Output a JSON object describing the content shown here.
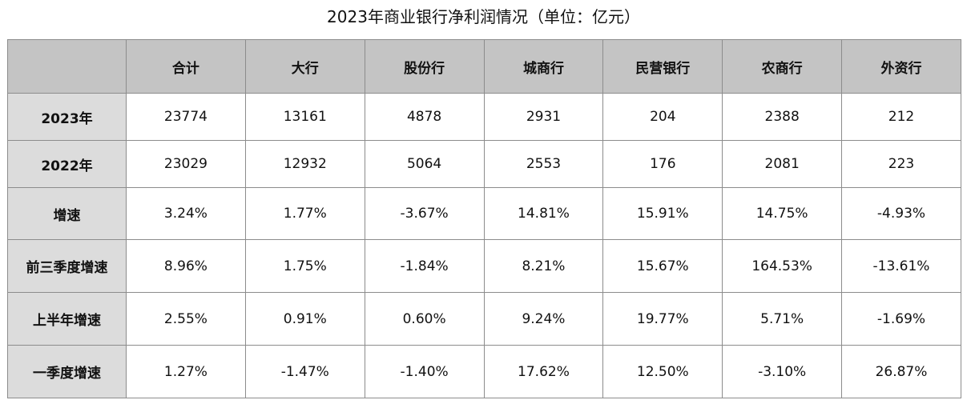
{
  "chart_data": {
    "type": "table",
    "title": "2023年商业银行净利润情况（单位：亿元）",
    "columns": [
      "合计",
      "大行",
      "股份行",
      "城商行",
      "民营银行",
      "农商行",
      "外资行"
    ],
    "rows": [
      {
        "label": "2023年",
        "values": [
          "23774",
          "13161",
          "4878",
          "2931",
          "204",
          "2388",
          "212"
        ]
      },
      {
        "label": "2022年",
        "values": [
          "23029",
          "12932",
          "5064",
          "2553",
          "176",
          "2081",
          "223"
        ]
      },
      {
        "label": "增速",
        "values": [
          "3.24%",
          "1.77%",
          "-3.67%",
          "14.81%",
          "15.91%",
          "14.75%",
          "-4.93%"
        ]
      },
      {
        "label": "前三季度增速",
        "values": [
          "8.96%",
          "1.75%",
          "-1.84%",
          "8.21%",
          "15.67%",
          "164.53%",
          "-13.61%"
        ]
      },
      {
        "label": "上半年增速",
        "values": [
          "2.55%",
          "0.91%",
          "0.60%",
          "9.24%",
          "19.77%",
          "5.71%",
          "-1.69%"
        ]
      },
      {
        "label": "一季度增速",
        "values": [
          "1.27%",
          "-1.47%",
          "-1.40%",
          "17.62%",
          "12.50%",
          "-3.10%",
          "26.87%"
        ]
      }
    ],
    "colors": {
      "header_bg": "#c4c4c4",
      "row_label_bg": "#dcdcdc",
      "cell_bg": "#ffffff",
      "border": "#8c8c8c"
    }
  }
}
